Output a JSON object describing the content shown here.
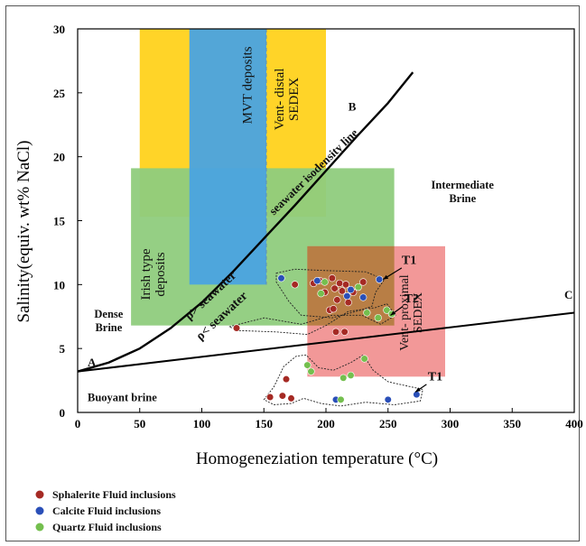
{
  "chart_data": {
    "type": "scatter",
    "title": "",
    "xlabel": "Homogeneziation temperature (°C)",
    "ylabel": "Salinity(equiv. wt% NaCl)",
    "xlim": [
      0,
      400
    ],
    "ylim": [
      0,
      30
    ],
    "xticks": [
      0,
      50,
      100,
      150,
      200,
      250,
      300,
      350,
      400
    ],
    "yticks": [
      0,
      5,
      10,
      15,
      20,
      25,
      30
    ],
    "grid": false,
    "legend_position": "bottom-left",
    "colors": {
      "sphalerite": "#a52a24",
      "calcite": "#2a4fb8",
      "quartz": "#74bf4e",
      "irish_field": "#8fcc7d",
      "mvt_field": "#4aa3e0",
      "sedex_distal_field": "#ffd21c",
      "sedex_proximal_field": "#f08a8a",
      "overlap_field": "#b27c3e"
    },
    "fields": [
      {
        "name": "Vent- distal SEDEX",
        "label_lines": [
          "Vent- distal",
          "SEDEX"
        ],
        "x": [
          50,
          200
        ],
        "y": [
          15.3,
          30
        ],
        "color": "#ffd21c"
      },
      {
        "name": "Irish type deposits",
        "label_lines": [
          "Irish type",
          "deposits"
        ],
        "x": [
          43,
          255
        ],
        "y": [
          6.8,
          19.1
        ],
        "color": "#8fcc7d"
      },
      {
        "name": "MVT deposits",
        "label_lines": [
          "MVT deposits"
        ],
        "x": [
          90,
          152
        ],
        "y": [
          10,
          30
        ],
        "color": "#4aa3e0"
      },
      {
        "name": "Vent- proximal SEDEX",
        "label_lines": [
          "Vent- proximal",
          "SEDEX"
        ],
        "x": [
          185,
          296
        ],
        "y": [
          2.8,
          13
        ],
        "color": "#f08a8a"
      }
    ],
    "curves": [
      {
        "name": "seawater isodensity line",
        "points": [
          [
            0,
            3.2
          ],
          [
            25,
            3.9
          ],
          [
            50,
            5.0
          ],
          [
            75,
            6.6
          ],
          [
            100,
            8.6
          ],
          [
            125,
            11.0
          ],
          [
            150,
            13.6
          ],
          [
            175,
            16.2
          ],
          [
            200,
            18.9
          ],
          [
            225,
            21.6
          ],
          [
            250,
            24.2
          ],
          [
            270,
            26.6
          ]
        ]
      },
      {
        "name": "A-C line",
        "points": [
          [
            0,
            3.2
          ],
          [
            400,
            7.8
          ]
        ]
      }
    ],
    "labels": [
      "A",
      "B",
      "C",
      "T1",
      "T2",
      "T1",
      "ρ> seawater",
      "ρ< seawater",
      "seawater isodensity line",
      "Intermediate Brine",
      "Dense Brine",
      "Buoyant brine"
    ],
    "series": [
      {
        "name": "Sphalerite Fluid inclusions",
        "color": "#a52a24",
        "points": [
          [
            128,
            6.6
          ],
          [
            175,
            10.0
          ],
          [
            190,
            10.1
          ],
          [
            195,
            10.3
          ],
          [
            199,
            9.4
          ],
          [
            203,
            8.0
          ],
          [
            205,
            10.5
          ],
          [
            207,
            9.7
          ],
          [
            209,
            8.8
          ],
          [
            211,
            10.1
          ],
          [
            213,
            9.5
          ],
          [
            216,
            10.0
          ],
          [
            218,
            8.6
          ],
          [
            222,
            9.4
          ],
          [
            230,
            10.2
          ],
          [
            208,
            6.3
          ],
          [
            215,
            6.3
          ],
          [
            165,
            1.3
          ],
          [
            168,
            2.6
          ],
          [
            155,
            1.2
          ],
          [
            172,
            1.1
          ],
          [
            206,
            8.1
          ]
        ]
      },
      {
        "name": "Calcite Fluid inclusions",
        "color": "#2a4fb8",
        "points": [
          [
            164,
            10.5
          ],
          [
            193,
            10.3
          ],
          [
            217,
            9.1
          ],
          [
            220,
            9.6
          ],
          [
            230,
            9.0
          ],
          [
            243,
            10.4
          ],
          [
            208,
            1.0
          ],
          [
            250,
            1.0
          ],
          [
            273,
            1.4
          ]
        ]
      },
      {
        "name": "Quartz Fluid inclusions",
        "color": "#74bf4e",
        "points": [
          [
            185,
            3.7
          ],
          [
            188,
            3.2
          ],
          [
            196,
            9.3
          ],
          [
            199,
            10.2
          ],
          [
            226,
            9.8
          ],
          [
            233,
            7.8
          ],
          [
            242,
            7.4
          ],
          [
            249,
            8.0
          ],
          [
            253,
            7.7
          ],
          [
            214,
            2.7
          ],
          [
            220,
            2.9
          ],
          [
            231,
            4.2
          ],
          [
            212,
            1.0
          ]
        ]
      }
    ]
  }
}
